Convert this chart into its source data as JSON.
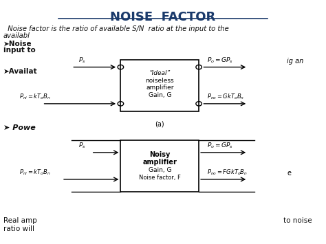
{
  "title": "NOISE  FACTOR",
  "bg_color": "#ffffff",
  "text_color": "#000000",
  "line1": "  Noise factor is the ratio of available S/N  ratio at the input to the",
  "line2": "availabl",
  "bullet1_line1": "➤Noise",
  "bullet1_line2": "input to",
  "bullet2": "➤Availat",
  "box1_label1": "“Ideal”",
  "box1_label2": "noiseless",
  "box1_label3": "amplifier",
  "box1_label4": "Gain, G",
  "box1_caption": "(a)",
  "box2_label1": "Noisy",
  "box2_label2": "amplifier",
  "box2_label3": "Gain, G",
  "box2_label4": "Noise factor, F",
  "label_pi1": "$P_s$",
  "label_pni1": "$P_{ni} = kT_oB_n$",
  "label_po1": "$P_o = GP_s$",
  "label_pno1": "$P_{no} = GkT_oB_n$",
  "label_pi2": "$P_s$",
  "label_pni2": "$P_{ni} = kT_oB_n$",
  "label_po2": "$P_o = GP_s$",
  "label_pno2": "$P_{no} = FGkT_oB_n$",
  "text_ig_an": "ig an",
  "text_powe": "➤ Powe",
  "text_real1": "Real amp",
  "text_real2": "ratio will",
  "text_to_noise": "to noise"
}
